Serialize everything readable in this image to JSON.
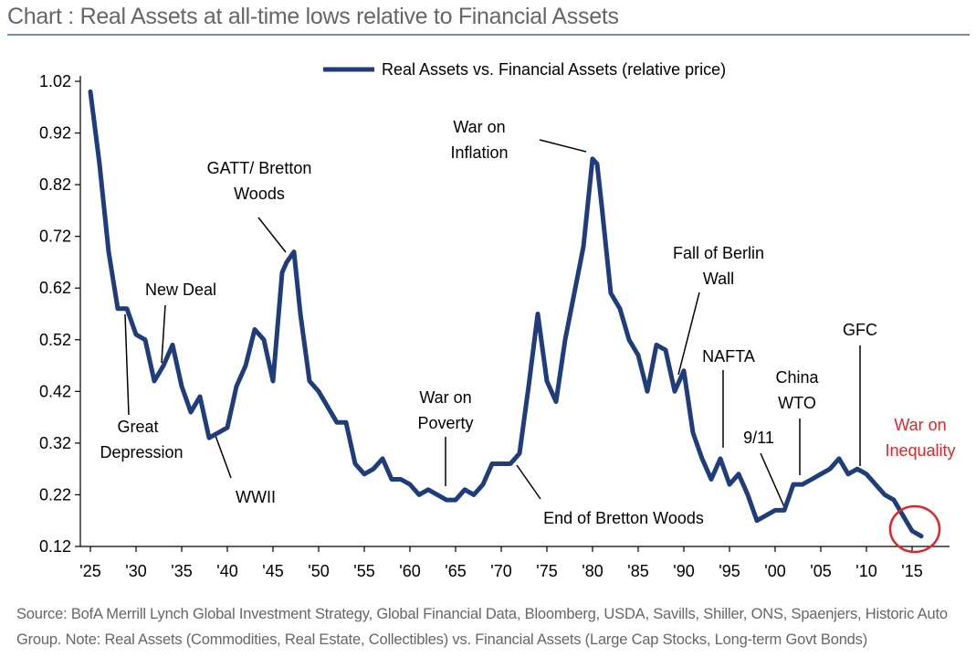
{
  "header": {
    "title": "Chart     : Real Assets at all-time lows relative to Financial Assets"
  },
  "source_note": "Source: BofA Merrill Lynch Global Investment Strategy, Global Financial Data, Bloomberg, USDA, Savills, Shiller, ONS, Spaenjers, Historic Auto Group. Note: Real Assets (Commodities, Real Estate, Collectibles) vs. Financial Assets (Large Cap Stocks, Long-term Govt Bonds)",
  "colors": {
    "line": "#1f3d7a",
    "highlight": "#e0262b",
    "title_rule": "#6f8fbf"
  },
  "chart_data": {
    "type": "line",
    "title": "Real Assets at all-time lows relative to Financial Assets",
    "xlabel": "",
    "ylabel": "",
    "xlim": [
      1925,
      2017
    ],
    "ylim": [
      0.12,
      1.02
    ],
    "y_ticks": [
      1.02,
      0.92,
      0.82,
      0.72,
      0.62,
      0.52,
      0.42,
      0.32,
      0.22,
      0.12
    ],
    "y_tick_labels": [
      "1.02",
      "0.92",
      "0.82",
      "0.72",
      "0.62",
      "0.52",
      "0.42",
      "0.32",
      "0.22",
      "0.12"
    ],
    "x_ticks": [
      1925,
      1930,
      1935,
      1940,
      1945,
      1950,
      1955,
      1960,
      1965,
      1970,
      1975,
      1980,
      1985,
      1990,
      1995,
      2000,
      2005,
      2010,
      2015
    ],
    "x_tick_labels": [
      "'25",
      "'30",
      "'35",
      "'40",
      "'45",
      "'50",
      "'55",
      "'60",
      "'65",
      "'70",
      "'75",
      "'80",
      "'85",
      "'90",
      "'95",
      "'00",
      "'05",
      "'10",
      "'15"
    ],
    "grid": false,
    "legend_position": "top-center",
    "series": [
      {
        "name": "Real Assets vs. Financial Assets (relative price)",
        "x": [
          1925,
          1926,
          1927,
          1928,
          1929,
          1930,
          1931,
          1932,
          1933,
          1934,
          1935,
          1936,
          1937,
          1938,
          1939,
          1940,
          1941,
          1942,
          1943,
          1944,
          1945,
          1946,
          1946.5,
          1947.3,
          1948,
          1949,
          1950,
          1951,
          1952,
          1953,
          1954,
          1955,
          1956,
          1957,
          1958,
          1959,
          1960,
          1961,
          1962,
          1963,
          1964,
          1965,
          1966,
          1967,
          1968,
          1969,
          1970,
          1971,
          1972,
          1973,
          1974,
          1975,
          1976,
          1977,
          1978,
          1979,
          1980,
          1980.5,
          1981,
          1982,
          1983,
          1984,
          1985,
          1986,
          1987,
          1988,
          1989,
          1990,
          1991,
          1992,
          1993,
          1994,
          1995,
          1996,
          1997,
          1998,
          1999,
          2000,
          2001,
          2002,
          2003,
          2004,
          2005,
          2006,
          2007,
          2008,
          2009,
          2010,
          2011,
          2012,
          2013,
          2014,
          2015,
          2016
        ],
        "values": [
          1.0,
          0.86,
          0.69,
          0.58,
          0.58,
          0.53,
          0.52,
          0.44,
          0.47,
          0.51,
          0.43,
          0.38,
          0.41,
          0.33,
          0.34,
          0.35,
          0.43,
          0.47,
          0.54,
          0.52,
          0.44,
          0.65,
          0.67,
          0.69,
          0.57,
          0.44,
          0.42,
          0.39,
          0.36,
          0.36,
          0.28,
          0.26,
          0.27,
          0.29,
          0.25,
          0.25,
          0.24,
          0.22,
          0.23,
          0.22,
          0.21,
          0.21,
          0.23,
          0.22,
          0.24,
          0.28,
          0.28,
          0.28,
          0.3,
          0.43,
          0.57,
          0.44,
          0.4,
          0.52,
          0.61,
          0.7,
          0.87,
          0.86,
          0.78,
          0.61,
          0.58,
          0.52,
          0.49,
          0.42,
          0.51,
          0.5,
          0.42,
          0.46,
          0.34,
          0.29,
          0.25,
          0.29,
          0.24,
          0.26,
          0.22,
          0.17,
          0.18,
          0.19,
          0.19,
          0.24,
          0.24,
          0.25,
          0.26,
          0.27,
          0.29,
          0.26,
          0.27,
          0.26,
          0.24,
          0.22,
          0.21,
          0.18,
          0.15,
          0.14
        ]
      }
    ],
    "annotations": [
      {
        "id": "new-deal",
        "text": "New Deal"
      },
      {
        "id": "great-depression",
        "text": "Great Depression"
      },
      {
        "id": "wwii",
        "text": "WWII"
      },
      {
        "id": "gatt",
        "text": "GATT/ Bretton Woods"
      },
      {
        "id": "war-on-poverty",
        "text": "War on Poverty"
      },
      {
        "id": "end-bretton",
        "text": "End of Bretton Woods"
      },
      {
        "id": "war-on-inflation",
        "text": "War on Inflation"
      },
      {
        "id": "berlin",
        "text": "Fall of Berlin Wall"
      },
      {
        "id": "nafta",
        "text": "NAFTA"
      },
      {
        "id": "nine-eleven",
        "text": "9/11"
      },
      {
        "id": "china-wto",
        "text": "China WTO"
      },
      {
        "id": "gfc",
        "text": "GFC"
      },
      {
        "id": "war-on-inequality",
        "text": "War on Inequality"
      }
    ]
  }
}
